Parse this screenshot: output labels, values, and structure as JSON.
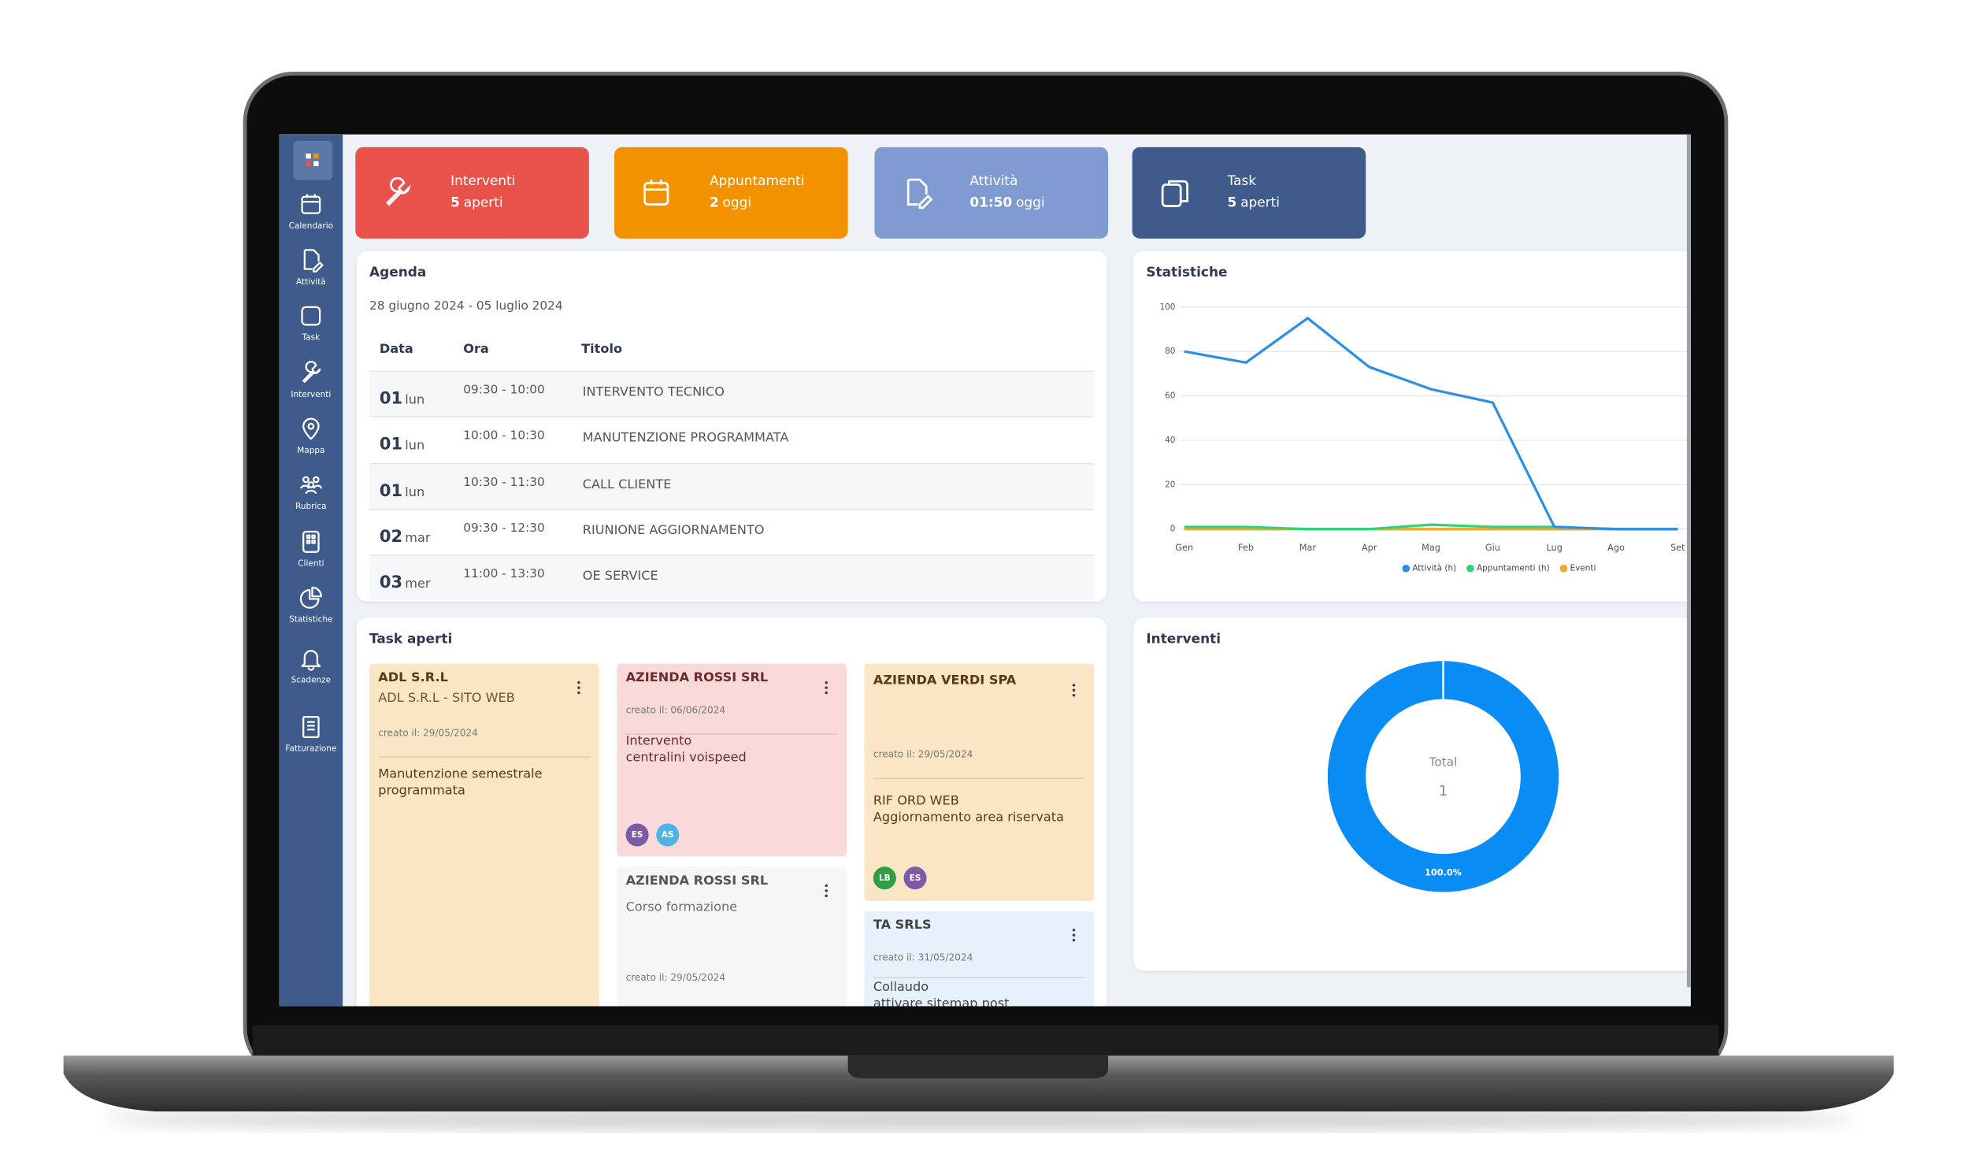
{
  "sidebar": [
    "Calendario",
    "Attività",
    "Task",
    "Interventi",
    "Mappa",
    "Rubrica",
    "Clienti",
    "Statistiche",
    "Scadenze",
    "Fatturazione"
  ],
  "stat_cards": [
    {
      "title": "Interventi",
      "value": 5,
      "unit": "aperti",
      "color": "#e9524a"
    },
    {
      "title": "Appuntamenti",
      "value": 2,
      "unit": "oggi",
      "color": "#f39200"
    },
    {
      "title": "Attività",
      "value": "01:50",
      "unit": "oggi",
      "color": "#7f9bd2"
    },
    {
      "title": "Task",
      "value": 5,
      "unit": "aperti",
      "color": "#3e5b8b"
    }
  ],
  "agenda": {
    "title": "Agenda",
    "range": "28 giugno 2024 - 05 luglio 2024",
    "columns": [
      "Data",
      "Ora",
      "Titolo"
    ],
    "rows": [
      {
        "day": "01",
        "weekday": "lun",
        "time": "09:30 - 10:00",
        "title": "INTERVENTO TECNICO"
      },
      {
        "day": "01",
        "weekday": "lun",
        "time": "10:00 - 10:30",
        "title": "MANUTENZIONE PROGRAMMATA"
      },
      {
        "day": "01",
        "weekday": "lun",
        "time": "10:30 - 11:30",
        "title": "CALL CLIENTE"
      },
      {
        "day": "02",
        "weekday": "mar",
        "time": "09:30 - 12:30",
        "title": "RIUNIONE AGGIORNAMENTO"
      },
      {
        "day": "03",
        "weekday": "mer",
        "time": "11:00 - 13:30",
        "title": "OE SERVICE"
      }
    ]
  },
  "tasks": {
    "title": "Task aperti",
    "columns": [
      [
        {
          "company": "ADL S.R.L",
          "subtitle": "ADL S.R.L - SITO WEB",
          "created": "creato il: 29/05/2024",
          "description": [
            "Manutenzione semestrale programmata"
          ],
          "color": "#fae6c4"
        }
      ],
      [
        {
          "company": "AZIENDA ROSSI  SRL",
          "created": "creato il: 06/06/2024",
          "description": [
            "Intervento",
            "centralini voispeed"
          ],
          "color": "#f9d9d9",
          "avatars": [
            {
              "initials": "ES",
              "color": "#7d5ba6"
            },
            {
              "initials": "AS",
              "color": "#4fb3e8"
            }
          ]
        },
        {
          "company": "AZIENDA ROSSI  SRL",
          "subtitle": "Corso formazione",
          "created": "creato il: 29/05/2024",
          "color": "#f5f6f8"
        }
      ],
      [
        {
          "company": "AZIENDA VERDI  SPA",
          "created": "creato il: 29/05/2024",
          "description": [
            "RIF ORD WEB",
            "Aggiornamento area riservata"
          ],
          "color": "#fae6c4",
          "avatars": [
            {
              "initials": "LB",
              "color": "#2f9e44"
            },
            {
              "initials": "ES",
              "color": "#7d5ba6"
            }
          ]
        },
        {
          "company": "TA    SRLS",
          "created": "creato il: 31/05/2024",
          "description": [
            "Collaudo",
            "attivare sitemap post"
          ],
          "color": "#e6f1fb"
        }
      ]
    ]
  },
  "chart_data": [
    {
      "type": "line",
      "title": "Statistiche",
      "categories": [
        "Gen",
        "Feb",
        "Mar",
        "Apr",
        "Mag",
        "Giu",
        "Lug",
        "Ago",
        "Set"
      ],
      "series": [
        {
          "name": "Attività (h)",
          "color": "#2b8fe6",
          "values": [
            80,
            75,
            95,
            73,
            63,
            57,
            1,
            0,
            0
          ]
        },
        {
          "name": "Appuntamenti (h)",
          "color": "#2ed47a",
          "values": [
            1,
            1,
            0,
            0,
            2,
            1,
            1,
            0,
            0
          ]
        },
        {
          "name": "Eventi",
          "color": "#f5a623",
          "values": [
            0,
            0,
            0,
            0,
            0,
            0,
            0,
            0,
            0
          ]
        }
      ],
      "ylim": [
        0,
        100
      ],
      "yticks": [
        0,
        20,
        40,
        60,
        80,
        100
      ],
      "grid": true,
      "legend": "bottom"
    },
    {
      "type": "doughnut",
      "title": "Interventi",
      "values": [
        100
      ],
      "value_labels": [
        "100.0%"
      ],
      "color": "#0a8cf5",
      "center_label": "Total",
      "center_value": 1
    }
  ]
}
